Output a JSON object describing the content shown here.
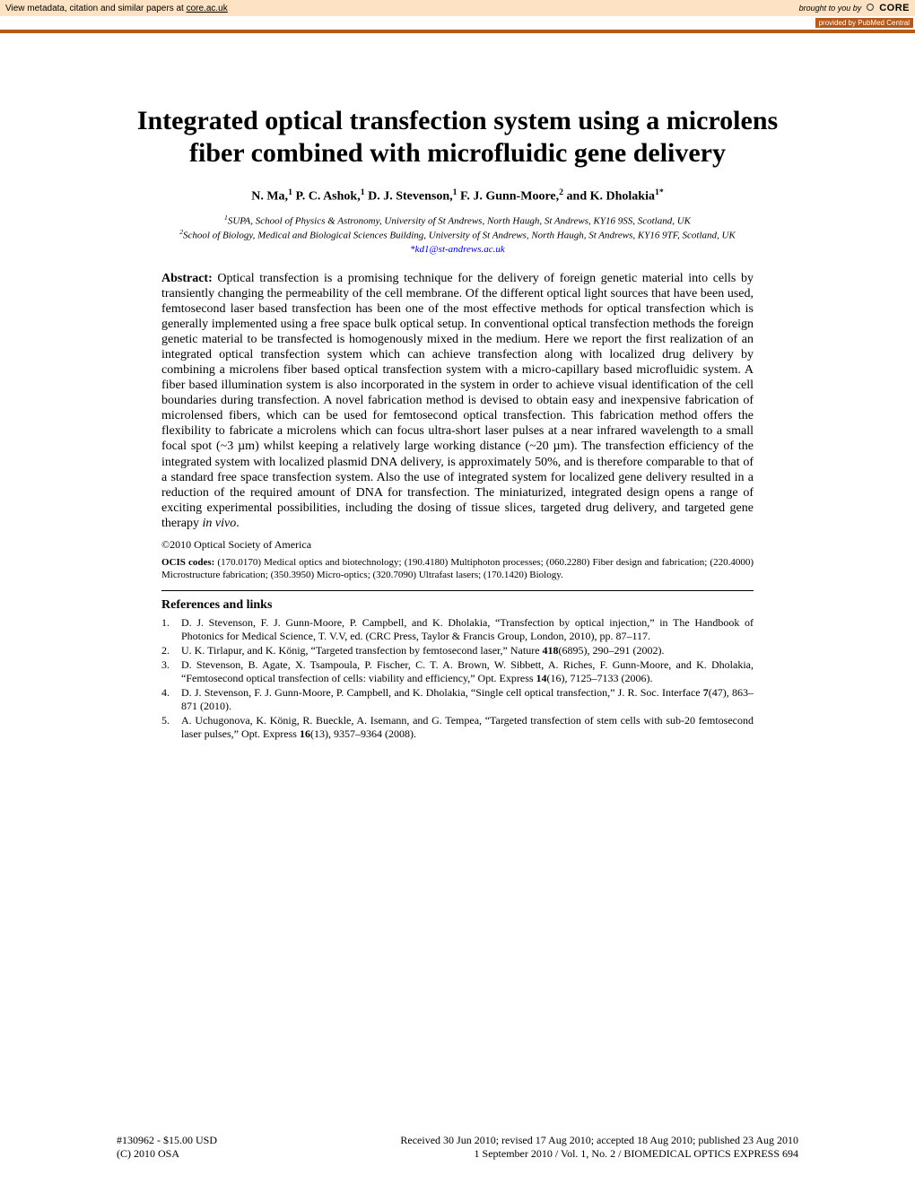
{
  "banner": {
    "left_text": "View metadata, citation and similar papers at ",
    "left_link": "core.ac.uk",
    "brought": "brought to you by",
    "core": "CORE",
    "provided": "provided by PubMed Central",
    "bg_color": "#fde3c3",
    "rule_color": "#b55a1a"
  },
  "title": "Integrated optical transfection system using a microlens fiber combined with microfluidic gene delivery",
  "authors_html": "N. Ma,<sup>1</sup> P. C. Ashok,<sup>1</sup> D. J. Stevenson,<sup>1</sup> F. J. Gunn-Moore,<sup>2</sup> and K. Dholakia<sup>1*</sup>",
  "affiliations": [
    "<sup>1</sup>SUPA, School of Physics & Astronomy, University of St Andrews, North Haugh, St Andrews, KY16 9SS, Scotland, UK",
    "<sup>2</sup>School of Biology, Medical and Biological Sciences Building, University of St Andrews, North Haugh, St Andrews, KY16 9TF, Scotland, UK"
  ],
  "email": "*kd1@st-andrews.ac.uk",
  "abstract_label": "Abstract:",
  "abstract_body": " Optical transfection is a promising technique for the delivery of foreign genetic material into cells by transiently changing the permeability of the cell membrane. Of the different optical light sources that have been used, femtosecond laser based transfection has been one of the most effective methods for optical transfection which is generally implemented using a free space bulk optical setup. In conventional optical transfection methods the foreign genetic material to be transfected is homogenously mixed in the medium. Here we report the first realization of an integrated optical transfection system which can achieve transfection along with localized drug delivery by combining a microlens fiber based optical transfection system with a micro-capillary based microfluidic system. A fiber based illumination system is also incorporated in the system in order to achieve visual identification of the cell boundaries during transfection. A novel fabrication method is devised to obtain easy and inexpensive fabrication of microlensed fibers, which can be used for femtosecond optical transfection. This fabrication method offers the flexibility to fabricate a microlens which can focus ultra-short laser pulses at a near infrared wavelength to a small focal spot (~3 µm) whilst keeping a relatively large working distance (~20 µm). The transfection efficiency of the integrated system with localized plasmid DNA delivery, is approximately 50%, and is therefore comparable to that of a standard free space transfection system. Also the use of integrated system for localized gene delivery resulted in a reduction of the required amount of DNA for transfection. The miniaturized, integrated design opens a range of exciting experimental possibilities, including the dosing of tissue slices, targeted drug delivery, and targeted gene therapy ",
  "abstract_tail_italic": "in vivo",
  "abstract_tail_period": ".",
  "copyright": "©2010 Optical Society of America",
  "ocis_label": "OCIS codes:",
  "ocis_body": " (170.0170) Medical optics and biotechnology; (190.4180) Multiphoton processes; (060.2280) Fiber design and fabrication; (220.4000) Microstructure fabrication; (350.3950) Micro-optics; (320.7090) Ultrafast lasers; (170.1420) Biology.",
  "references_heading": "References and links",
  "references": [
    {
      "n": "1.",
      "t": "D. J. Stevenson, F. J. Gunn-Moore, P. Campbell, and K. Dholakia, “Transfection by optical injection,” in The Handbook of Photonics for Medical Science, T. V.V, ed. (CRC Press, Taylor & Francis Group, London, 2010), pp. 87–117."
    },
    {
      "n": "2.",
      "t": "U. K. Tirlapur, and K. König, “Targeted transfection by femtosecond laser,” Nature <b>418</b>(6895), 290–291 (2002)."
    },
    {
      "n": "3.",
      "t": "D. Stevenson, B. Agate, X. Tsampoula, P. Fischer, C. T. A. Brown, W. Sibbett, A. Riches, F. Gunn-Moore, and K. Dholakia, “Femtosecond optical transfection of cells: viability and efficiency,” Opt. Express <b>14</b>(16), 7125–7133 (2006)."
    },
    {
      "n": "4.",
      "t": "D. J. Stevenson, F. J. Gunn-Moore, P. Campbell, and K. Dholakia, “Single cell optical transfection,” J. R. Soc. Interface <b>7</b>(47), 863–871 (2010)."
    },
    {
      "n": "5.",
      "t": "A. Uchugonova, K. König, R. Bueckle, A. Isemann, and G. Tempea, “Targeted transfection of stem cells with sub-20 femtosecond laser pulses,” Opt. Express <b>16</b>(13), 9357–9364 (2008)."
    }
  ],
  "footer": {
    "article_id": "#130962 - $15.00 USD",
    "received": "Received 30 Jun 2010; revised 17 Aug 2010; accepted 18 Aug 2010; published 23 Aug 2010",
    "copyright_line": "(C) 2010 OSA",
    "issue": "1 September 2010 / Vol. 1,  No. 2 / BIOMEDICAL OPTICS EXPRESS  694"
  },
  "fonts": {
    "body_family": "Times New Roman",
    "title_size_pt": 22,
    "body_size_pt": 11,
    "ref_size_pt": 9
  },
  "colors": {
    "background": "#ffffff",
    "text": "#000000",
    "link": "#0000cc"
  }
}
